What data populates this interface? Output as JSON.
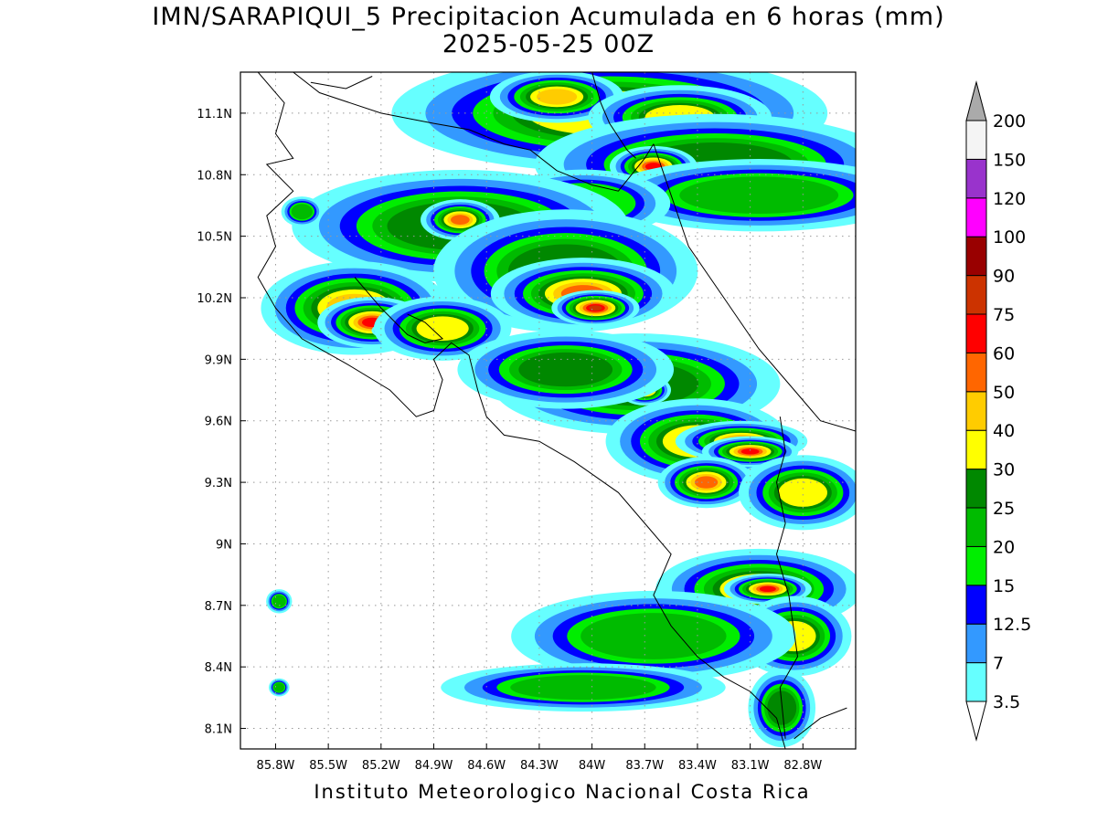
{
  "title": {
    "line1": "IMN/SARAPIQUI_5 Precipitacion Acumulada en 6 horas (mm)",
    "line2": "2025-05-25 00Z"
  },
  "credit": "Instituto Meteorologico Nacional Costa Rica",
  "map": {
    "lon_range": [
      -86.0,
      -82.5
    ],
    "lat_range": [
      8.0,
      11.3
    ],
    "grid": "dotted",
    "x_ticks": [
      "85.8W",
      "85.5W",
      "85.2W",
      "84.9W",
      "84.6W",
      "84.3W",
      "84W",
      "83.7W",
      "83.4W",
      "83.1W",
      "82.8W"
    ],
    "x_tick_values": [
      -85.8,
      -85.5,
      -85.2,
      -84.9,
      -84.6,
      -84.3,
      -84.0,
      -83.7,
      -83.4,
      -83.1,
      -82.8
    ],
    "y_ticks": [
      "11.1N",
      "10.8N",
      "10.5N",
      "10.2N",
      "9.9N",
      "9.6N",
      "9.3N",
      "9N",
      "8.7N",
      "8.4N",
      "8.1N"
    ],
    "y_tick_values": [
      11.1,
      10.8,
      10.5,
      10.2,
      9.9,
      9.6,
      9.3,
      9.0,
      8.7,
      8.4,
      8.1
    ],
    "coast_color": "#000000"
  },
  "colorbar": {
    "labels": [
      "3.5",
      "7",
      "12.5",
      "15",
      "20",
      "25",
      "30",
      "40",
      "50",
      "60",
      "75",
      "90",
      "100",
      "120",
      "150",
      "200"
    ],
    "colors": [
      "#66ffff",
      "#3399ff",
      "#0000ff",
      "#00ee00",
      "#00bb00",
      "#008800",
      "#ffff00",
      "#ffcc00",
      "#ff6600",
      "#ff0000",
      "#cc3300",
      "#990000",
      "#ff00ff",
      "#9933cc",
      "#f4f4f4"
    ],
    "under_color": "#ffffff",
    "over_color": "#aaaaaa"
  },
  "precip_cells": [
    [
      -83.9,
      11.1,
      0.95,
      0.22,
      30
    ],
    [
      -84.2,
      11.18,
      0.3,
      0.1,
      40
    ],
    [
      -83.5,
      11.08,
      0.4,
      0.12,
      30
    ],
    [
      -83.3,
      10.85,
      0.75,
      0.18,
      25
    ],
    [
      -83.65,
      10.84,
      0.2,
      0.08,
      60
    ],
    [
      -83.05,
      10.7,
      0.6,
      0.12,
      20
    ],
    [
      -84.05,
      10.66,
      0.3,
      0.1,
      15
    ],
    [
      -84.75,
      10.55,
      0.7,
      0.2,
      25
    ],
    [
      -84.75,
      10.58,
      0.18,
      0.08,
      50
    ],
    [
      -84.15,
      10.33,
      0.55,
      0.22,
      25
    ],
    [
      -84.05,
      10.22,
      0.42,
      0.14,
      50
    ],
    [
      -83.98,
      10.15,
      0.2,
      0.07,
      75
    ],
    [
      -85.35,
      10.15,
      0.42,
      0.18,
      40
    ],
    [
      -85.25,
      10.08,
      0.25,
      0.1,
      60
    ],
    [
      -85.15,
      10.04,
      0.08,
      0.03,
      120
    ],
    [
      -84.85,
      10.05,
      0.3,
      0.12,
      30
    ],
    [
      -83.75,
      9.78,
      0.6,
      0.18,
      25
    ],
    [
      -83.7,
      9.75,
      0.12,
      0.06,
      60
    ],
    [
      -84.15,
      9.85,
      0.45,
      0.14,
      25
    ],
    [
      -83.4,
      9.5,
      0.4,
      0.16,
      30
    ],
    [
      -83.15,
      9.5,
      0.3,
      0.08,
      50
    ],
    [
      -83.1,
      9.45,
      0.22,
      0.06,
      60
    ],
    [
      -83.35,
      9.3,
      0.22,
      0.1,
      50
    ],
    [
      -82.8,
      9.25,
      0.28,
      0.14,
      30
    ],
    [
      -83.05,
      8.78,
      0.45,
      0.15,
      30
    ],
    [
      -83.0,
      8.78,
      0.2,
      0.06,
      60
    ],
    [
      -82.85,
      8.55,
      0.25,
      0.15,
      30
    ],
    [
      -83.65,
      8.55,
      0.55,
      0.15,
      20
    ],
    [
      -84.05,
      8.3,
      0.55,
      0.08,
      20
    ],
    [
      -82.92,
      8.2,
      0.14,
      0.14,
      25
    ],
    [
      -85.65,
      10.62,
      0.08,
      0.05,
      20
    ],
    [
      -85.78,
      8.72,
      0.05,
      0.04,
      20
    ],
    [
      -85.78,
      8.3,
      0.04,
      0.03,
      20
    ]
  ]
}
